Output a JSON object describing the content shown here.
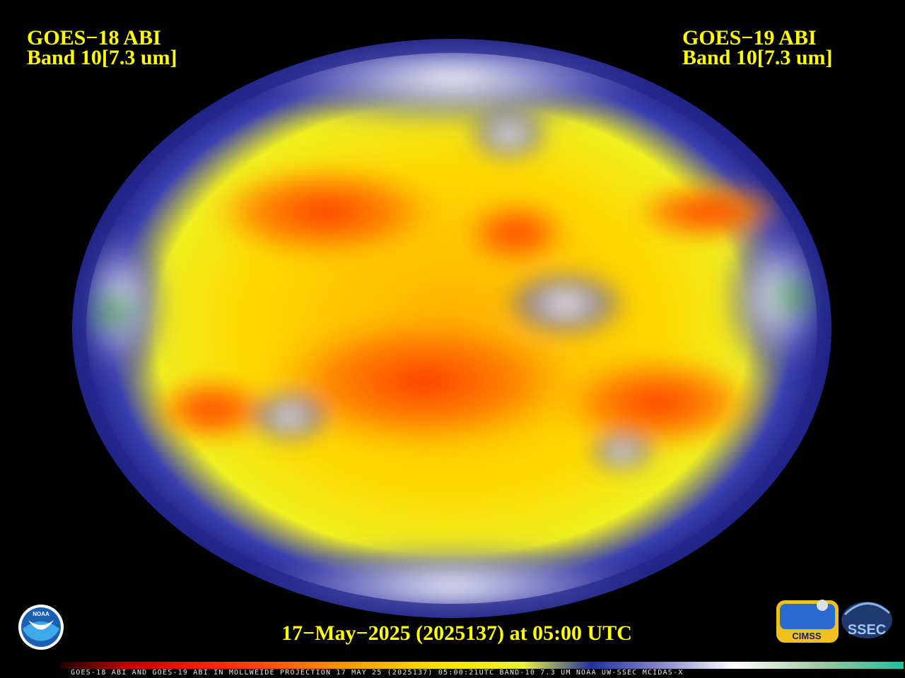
{
  "header": {
    "left": {
      "line1": "GOES−18 ABI",
      "line2": "Band 10[7.3 um]"
    },
    "right": {
      "line1": "GOES−19 ABI",
      "line2": "Band 10[7.3 um]"
    }
  },
  "timestamp": "17−May−2025 (2025137) at 05:00 UTC",
  "logos": {
    "noaa": "NOAA",
    "cimss": "CIMSS",
    "ssec": "SSEC"
  },
  "footer": "GOES-18 ABI AND GOES-19 ABI IN MOLLWEIDE PROJECTION 17 MAY 25 (2025137) 05:00:21UTC BAND-10 7.3 UM NOAA UW-SSEC MCIDAS-X"
}
